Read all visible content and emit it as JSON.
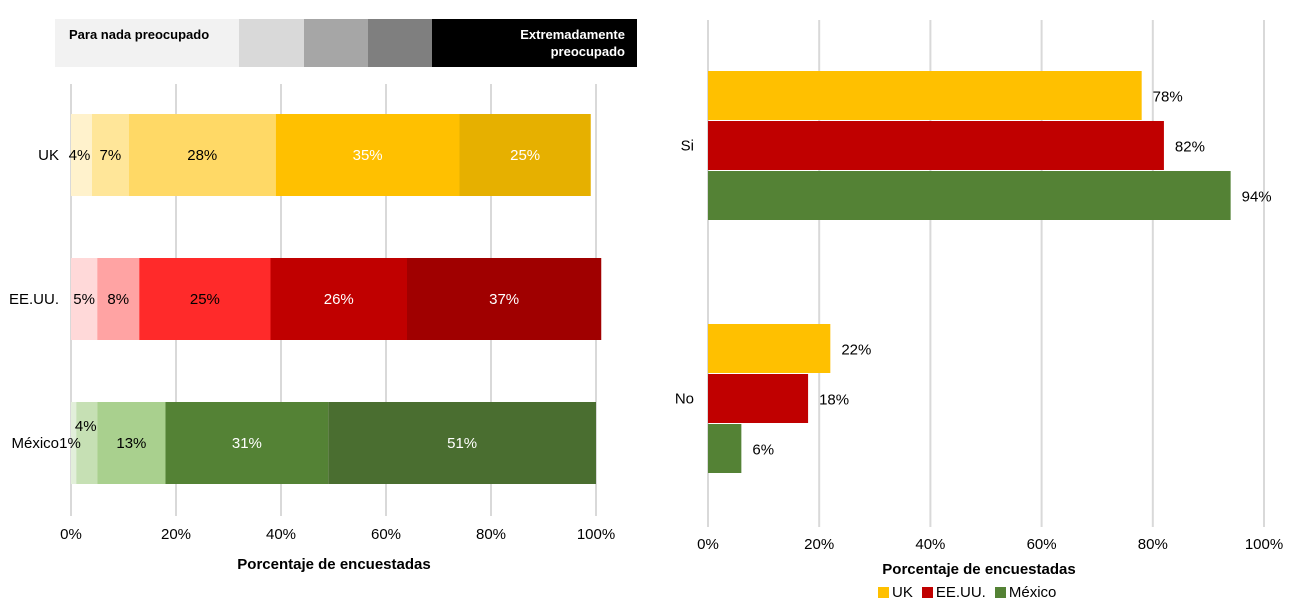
{
  "chart_data": [
    {
      "type": "bar",
      "orientation": "horizontal",
      "stacked": true,
      "title": "",
      "xlabel": "Porcentaje de encuestadas",
      "ylabel": "",
      "xlim": [
        0,
        100
      ],
      "x_ticks": [
        "0%",
        "20%",
        "40%",
        "60%",
        "80%",
        "100%"
      ],
      "grid": "vertical",
      "scale_legend": {
        "left_label": "Para nada preocupado",
        "right_label": "Extremadamente preocupado",
        "colors": [
          "#f2f2f2",
          "#d9d9d9",
          "#a6a6a6",
          "#7f7f7f",
          "#000000"
        ]
      },
      "categories": [
        "UK",
        "EE.UU.",
        "México"
      ],
      "rows": [
        {
          "name": "UK",
          "values": [
            4,
            7,
            28,
            35,
            25
          ],
          "labels": [
            "4%",
            "7%",
            "28%",
            "35%",
            "25%"
          ],
          "colors": [
            "#fff2cc",
            "#ffe699",
            "#ffd966",
            "#ffc000",
            "#e6b000"
          ],
          "label_colors": [
            "#000000",
            "#000000",
            "#000000",
            "#ffffff",
            "#ffffff"
          ]
        },
        {
          "name": "EE.UU.",
          "values": [
            5,
            8,
            25,
            26,
            37
          ],
          "labels": [
            "5%",
            "8%",
            "25%",
            "26%",
            "37%"
          ],
          "colors": [
            "#ffd9d9",
            "#ffa3a3",
            "#ff2a2a",
            "#c00000",
            "#a00000"
          ],
          "label_colors": [
            "#000000",
            "#000000",
            "#000000",
            "#ffffff",
            "#ffffff"
          ]
        },
        {
          "name": "México",
          "values": [
            1,
            4,
            13,
            31,
            51
          ],
          "labels": [
            "1%",
            "4%",
            "13%",
            "31%",
            "51%"
          ],
          "colors": [
            "#e2efda",
            "#c6e0b4",
            "#a9d08e",
            "#548235",
            "#4a6e30"
          ],
          "label_colors": [
            "#000000",
            "#000000",
            "#000000",
            "#ffffff",
            "#ffffff"
          ]
        }
      ]
    },
    {
      "type": "bar",
      "orientation": "horizontal",
      "stacked": false,
      "title": "",
      "xlabel": "Porcentaje de encuestadas",
      "ylabel": "",
      "xlim": [
        0,
        100
      ],
      "x_ticks": [
        "0%",
        "20%",
        "40%",
        "60%",
        "80%",
        "100%"
      ],
      "grid": "vertical",
      "categories": [
        "Si",
        "No"
      ],
      "series": [
        {
          "name": "UK",
          "color": "#ffc000",
          "values": [
            78,
            22
          ],
          "labels": [
            "78%",
            "22%"
          ]
        },
        {
          "name": "EE.UU.",
          "color": "#c00000",
          "values": [
            82,
            18
          ],
          "labels": [
            "82%",
            "18%"
          ]
        },
        {
          "name": "México",
          "color": "#548235",
          "values": [
            94,
            6
          ],
          "labels": [
            "94%",
            "6%"
          ]
        }
      ],
      "legend_position": "bottom"
    }
  ]
}
